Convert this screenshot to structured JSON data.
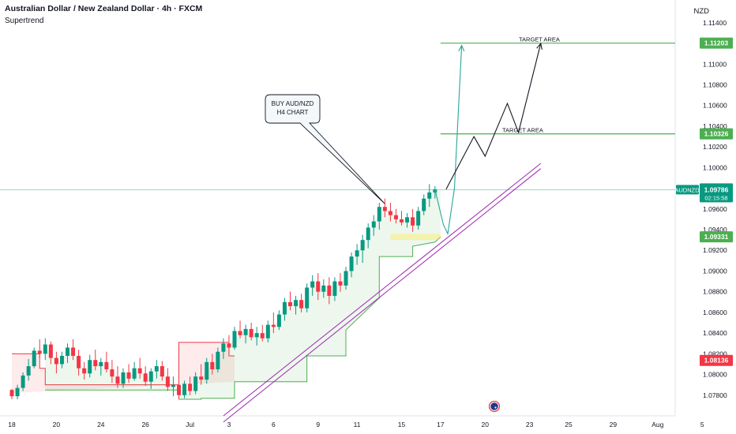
{
  "header": {
    "title": "Australian Dollar / New Zealand Dollar · 4h · FXCM",
    "indicator": "Supertrend"
  },
  "currency": "NZD",
  "colors": {
    "up": "#089981",
    "down": "#f23645",
    "target_line": "#4caf50",
    "trendline": "#9c27b0",
    "supertrend": "#4caf50"
  },
  "chart_data": {
    "type": "candlestick",
    "symbol": "AUDNZD",
    "timeframe": "4h",
    "y_axis": {
      "ticks": [
        "1.11400",
        "1.11000",
        "1.10800",
        "1.10600",
        "1.10400",
        "1.10200",
        "1.10000",
        "1.09600",
        "1.09400",
        "1.09200",
        "1.09000",
        "1.08800",
        "1.08600",
        "1.08400",
        "1.08200",
        "1.08000",
        "1.07800"
      ],
      "range": [
        1.076,
        1.1162
      ]
    },
    "x_axis": {
      "ticks": [
        "18",
        "20",
        "24",
        "26",
        "Jul",
        "3",
        "6",
        "9",
        "11",
        "15",
        "17",
        "20",
        "23",
        "25",
        "29",
        "Aug",
        "5"
      ],
      "tick_index": [
        0,
        8,
        16,
        24,
        32,
        39,
        47,
        55,
        62,
        70,
        77,
        85,
        93,
        100,
        108,
        116,
        124
      ]
    },
    "price_labels": [
      {
        "name": "target-1",
        "value": "1.11203",
        "price": 1.11203
      },
      {
        "name": "target-2",
        "value": "1.10326",
        "price": 1.10326
      },
      {
        "name": "last-price",
        "value": "1.09786",
        "price": 1.09786,
        "countdown": "02:15:58",
        "symbol": "AUDNZD"
      },
      {
        "name": "supertrend-up",
        "value": "1.09331",
        "price": 1.09331
      },
      {
        "name": "supertrend-down",
        "value": "1.08136",
        "price": 1.08136
      }
    ],
    "targets": [
      {
        "label": "TARGET AREA",
        "price": 1.11203,
        "from_index": 77
      },
      {
        "label": "TARGET AREA",
        "price": 1.10326,
        "from_index": 77
      }
    ],
    "callout": {
      "lines": [
        "BUY  AUD/NZD",
        "H4 CHART"
      ]
    },
    "trendlines": [
      {
        "from": {
          "i": 38,
          "p": 1.076
        },
        "to": {
          "i": 95,
          "p": 1.1004
        }
      },
      {
        "from": {
          "i": 38,
          "p": 1.0754
        },
        "to": {
          "i": 95,
          "p": 1.0999
        }
      }
    ],
    "projections": [
      {
        "color": "#26a69a",
        "points": [
          [
            76,
            1.0979
          ],
          [
            77.5,
            1.0945
          ],
          [
            78.3,
            1.0936
          ],
          [
            79.5,
            1.098
          ],
          [
            80.8,
            1.1118
          ]
        ]
      },
      {
        "color": "#131722",
        "points": [
          [
            78,
            1.0979
          ],
          [
            83,
            1.103
          ],
          [
            85,
            1.1011
          ],
          [
            89,
            1.1062
          ],
          [
            91,
            1.1034
          ],
          [
            95,
            1.112
          ]
        ]
      }
    ],
    "supertrend_down": [
      [
        0,
        1.082
      ],
      [
        5,
        1.082
      ],
      [
        5,
        1.0806
      ],
      [
        6,
        1.0806
      ],
      [
        6,
        1.079
      ],
      [
        30,
        1.079
      ],
      [
        30,
        1.0831
      ],
      [
        39,
        1.0831
      ],
      [
        39,
        1.0818
      ],
      [
        40,
        1.0818
      ]
    ],
    "supertrend_up": [
      [
        6,
        1.0785
      ],
      [
        30,
        1.0785
      ],
      [
        30,
        1.0776
      ],
      [
        34,
        1.0776
      ],
      [
        34,
        1.0777
      ],
      [
        40,
        1.0777
      ],
      [
        40,
        1.0793
      ],
      [
        53,
        1.0793
      ],
      [
        53,
        1.0818
      ],
      [
        60,
        1.0818
      ],
      [
        60,
        1.0843
      ],
      [
        66,
        1.0874
      ],
      [
        66,
        1.0914
      ],
      [
        72,
        1.0914
      ],
      [
        72,
        1.0924
      ],
      [
        76,
        1.0928
      ],
      [
        77,
        1.0933
      ]
    ],
    "candles": [
      [
        0,
        1.0785,
        1.0786,
        1.0776,
        1.0779
      ],
      [
        1,
        1.0779,
        1.079,
        1.0776,
        1.0787
      ],
      [
        2,
        1.0787,
        1.0802,
        1.0784,
        1.0799
      ],
      [
        3,
        1.0799,
        1.0815,
        1.0794,
        1.0808
      ],
      [
        4,
        1.0808,
        1.0826,
        1.0806,
        1.0823
      ],
      [
        5,
        1.0823,
        1.0834,
        1.0816,
        1.082
      ],
      [
        6,
        1.082,
        1.0835,
        1.0814,
        1.0829
      ],
      [
        7,
        1.0829,
        1.0832,
        1.081,
        1.0816
      ],
      [
        8,
        1.0816,
        1.0822,
        1.0801,
        1.081
      ],
      [
        9,
        1.081,
        1.0822,
        1.0806,
        1.0818
      ],
      [
        10,
        1.0818,
        1.083,
        1.0811,
        1.0826
      ],
      [
        11,
        1.0826,
        1.0834,
        1.0814,
        1.0818
      ],
      [
        12,
        1.0818,
        1.0824,
        1.0799,
        1.0806
      ],
      [
        13,
        1.0806,
        1.0812,
        1.0795,
        1.0801
      ],
      [
        14,
        1.0801,
        1.0819,
        1.0797,
        1.0814
      ],
      [
        15,
        1.0814,
        1.0824,
        1.0804,
        1.0808
      ],
      [
        16,
        1.0808,
        1.0816,
        1.0799,
        1.0812
      ],
      [
        17,
        1.0812,
        1.0822,
        1.0802,
        1.0805
      ],
      [
        18,
        1.0805,
        1.0814,
        1.0792,
        1.0798
      ],
      [
        19,
        1.0798,
        1.0808,
        1.0787,
        1.0791
      ],
      [
        20,
        1.0791,
        1.0806,
        1.0787,
        1.0802
      ],
      [
        21,
        1.0802,
        1.081,
        1.0792,
        1.0796
      ],
      [
        22,
        1.0796,
        1.0812,
        1.0794,
        1.0806
      ],
      [
        23,
        1.0806,
        1.0816,
        1.0796,
        1.0801
      ],
      [
        24,
        1.0801,
        1.0808,
        1.0789,
        1.0793
      ],
      [
        25,
        1.0793,
        1.0806,
        1.0786,
        1.0803
      ],
      [
        26,
        1.0803,
        1.0814,
        1.0796,
        1.0808
      ],
      [
        27,
        1.0808,
        1.0813,
        1.0794,
        1.0798
      ],
      [
        28,
        1.0798,
        1.0806,
        1.0784,
        1.0788
      ],
      [
        29,
        1.0788,
        1.0798,
        1.0779,
        1.079
      ],
      [
        30,
        1.079,
        1.0796,
        1.0776,
        1.078
      ],
      [
        31,
        1.078,
        1.0794,
        1.0777,
        1.0791
      ],
      [
        32,
        1.0791,
        1.0798,
        1.078,
        1.0784
      ],
      [
        33,
        1.0784,
        1.0802,
        1.0781,
        1.0798
      ],
      [
        34,
        1.0798,
        1.081,
        1.079,
        1.0795
      ],
      [
        35,
        1.0795,
        1.0816,
        1.0791,
        1.0812
      ],
      [
        36,
        1.0812,
        1.082,
        1.08,
        1.0805
      ],
      [
        37,
        1.0805,
        1.0826,
        1.0802,
        1.0822
      ],
      [
        38,
        1.0822,
        1.0835,
        1.0815,
        1.083
      ],
      [
        39,
        1.083,
        1.0838,
        1.082,
        1.0826
      ],
      [
        40,
        1.0826,
        1.0846,
        1.0824,
        1.0842
      ],
      [
        41,
        1.0842,
        1.0852,
        1.0835,
        1.0838
      ],
      [
        42,
        1.0838,
        1.0848,
        1.083,
        1.0844
      ],
      [
        43,
        1.0844,
        1.085,
        1.0833,
        1.0836
      ],
      [
        44,
        1.0836,
        1.0846,
        1.0828,
        1.084
      ],
      [
        45,
        1.084,
        1.0848,
        1.0832,
        1.0835
      ],
      [
        46,
        1.0835,
        1.0852,
        1.0831,
        1.0848
      ],
      [
        47,
        1.0848,
        1.086,
        1.084,
        1.0846
      ],
      [
        48,
        1.0846,
        1.0862,
        1.0843,
        1.0858
      ],
      [
        49,
        1.0858,
        1.0874,
        1.0852,
        1.087
      ],
      [
        50,
        1.087,
        1.088,
        1.0862,
        1.0866
      ],
      [
        51,
        1.0866,
        1.0876,
        1.0858,
        1.0872
      ],
      [
        52,
        1.0872,
        1.0878,
        1.086,
        1.0864
      ],
      [
        53,
        1.0864,
        1.0888,
        1.086,
        1.0884
      ],
      [
        54,
        1.0884,
        1.0896,
        1.0876,
        1.089
      ],
      [
        55,
        1.089,
        1.0898,
        1.0872,
        1.088
      ],
      [
        56,
        1.088,
        1.0892,
        1.0874,
        1.0886
      ],
      [
        57,
        1.0886,
        1.0894,
        1.0868,
        1.0876
      ],
      [
        58,
        1.0876,
        1.0894,
        1.0871,
        1.089
      ],
      [
        59,
        1.089,
        1.0898,
        1.088,
        1.0886
      ],
      [
        60,
        1.0886,
        1.0904,
        1.0882,
        1.09
      ],
      [
        61,
        1.09,
        1.0918,
        1.0894,
        1.0914
      ],
      [
        62,
        1.0914,
        1.0926,
        1.0906,
        1.092
      ],
      [
        63,
        1.092,
        1.0935,
        1.0908,
        1.093
      ],
      [
        64,
        1.093,
        1.0946,
        1.0922,
        1.0942
      ],
      [
        65,
        1.0942,
        1.0954,
        1.0934,
        1.0948
      ],
      [
        66,
        1.0948,
        1.0966,
        1.094,
        1.0962
      ],
      [
        67,
        1.0962,
        1.097,
        1.0952,
        1.0958
      ],
      [
        68,
        1.0958,
        1.0966,
        1.0948,
        1.0954
      ],
      [
        69,
        1.0954,
        1.096,
        1.0946,
        1.095
      ],
      [
        70,
        1.095,
        1.0958,
        1.0944,
        1.0947
      ],
      [
        71,
        1.0947,
        1.0956,
        1.0942,
        1.0952
      ],
      [
        72,
        1.0952,
        1.096,
        1.0938,
        1.0944
      ],
      [
        73,
        1.0944,
        1.0962,
        1.094,
        1.0958
      ],
      [
        74,
        1.0958,
        1.0974,
        1.0954,
        1.097
      ],
      [
        75,
        1.097,
        1.0984,
        1.0962,
        1.0976
      ],
      [
        76,
        1.0976,
        1.0982,
        1.097,
        1.0979
      ]
    ]
  }
}
